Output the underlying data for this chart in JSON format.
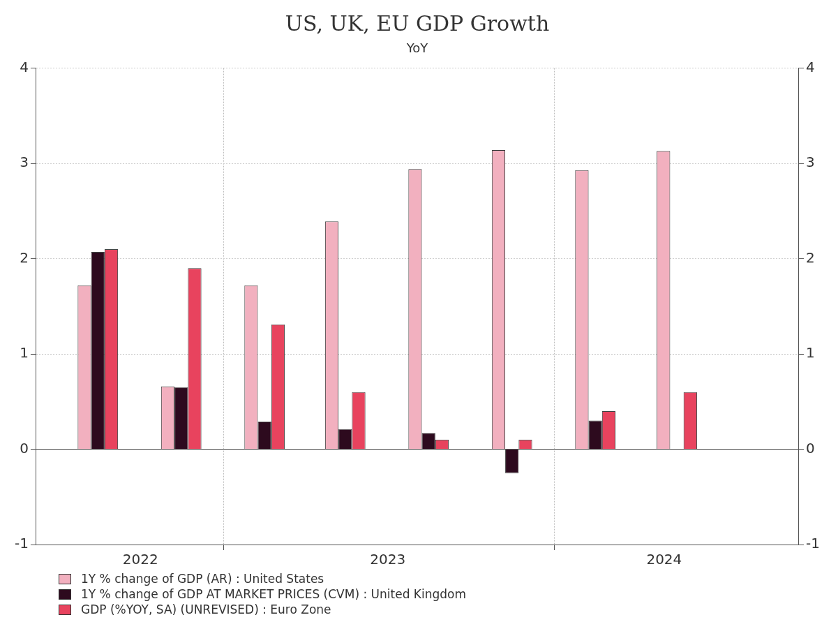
{
  "chart_data": {
    "type": "bar",
    "title": "US, UK, EU GDP Growth",
    "subtitle": "YoY",
    "x": [
      "2022-08-15",
      "2022-11-15",
      "2023-02-15",
      "2023-05-15",
      "2023-08-15",
      "2023-11-15",
      "2024-02-15",
      "2024-05-15"
    ],
    "series": [
      {
        "name": "1Y % change of GDP (AR) : United States",
        "color": "#f2b0bf",
        "values": [
          1.72,
          0.66,
          1.72,
          2.39,
          2.94,
          3.14,
          2.93,
          3.13
        ]
      },
      {
        "name": "1Y % change of GDP AT MARKET PRICES (CVM) : United Kingdom",
        "color": "#2d0a1e",
        "values": [
          2.07,
          0.65,
          0.29,
          0.21,
          0.17,
          -0.25,
          0.3,
          null
        ]
      },
      {
        "name": "GDP (%YOY, SA) (UNREVISED) : Euro Zone",
        "color": "#e8435e",
        "values": [
          2.1,
          1.9,
          1.31,
          0.6,
          0.1,
          0.1,
          0.4,
          0.6
        ]
      }
    ],
    "xlim": [
      "2022-06-08",
      "2024-09-26"
    ],
    "xticks": [
      {
        "value": "2022-10-01",
        "label": "2022"
      },
      {
        "value": "2023-01-01",
        "label": null
      },
      {
        "value": "2023-07-01",
        "label": "2023"
      },
      {
        "value": "2024-01-01",
        "label": null
      },
      {
        "value": "2024-05-01",
        "label": "2024"
      }
    ],
    "ylim": [
      -1,
      4
    ],
    "yticks": [
      -1,
      0,
      1,
      2,
      3,
      4
    ],
    "y2lim": [
      -1,
      4
    ],
    "y2ticks": [
      -1,
      0,
      1,
      2,
      3,
      4
    ],
    "grid": true,
    "legend": "bottom left"
  }
}
